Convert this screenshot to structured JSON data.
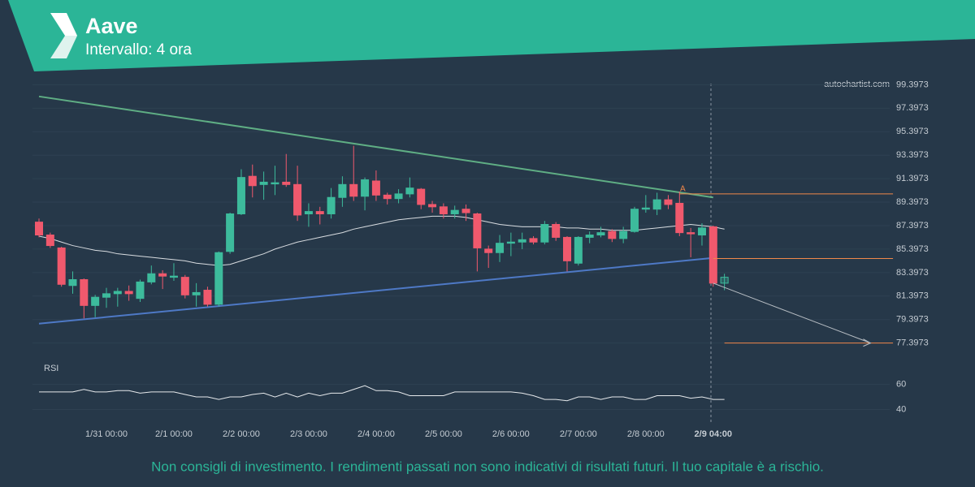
{
  "header": {
    "title": "Aave",
    "subtitle": "Intervallo: 4 ora"
  },
  "watermark": "autochartist.com",
  "disclaimer": "Non consigli di investimento. I rendimenti passati non sono indicativi di risultati futuri. Il tuo capitale è a rischio.",
  "chart_data": {
    "type": "candlestick",
    "categories": [
      null,
      null,
      null,
      null,
      null,
      null,
      "1/31 00:00",
      null,
      null,
      null,
      null,
      null,
      "2/1 00:00",
      null,
      null,
      null,
      null,
      null,
      "2/2 00:00",
      null,
      null,
      null,
      null,
      null,
      "2/3 00:00",
      null,
      null,
      null,
      null,
      null,
      "2/4 00:00",
      null,
      null,
      null,
      null,
      null,
      "2/5 00:00",
      null,
      null,
      null,
      null,
      null,
      "2/6 00:00",
      null,
      null,
      null,
      null,
      null,
      "2/7 00:00",
      null,
      null,
      null,
      null,
      null,
      "2/8 00:00",
      null,
      null,
      null,
      null,
      null,
      "2/9 04:00",
      null
    ],
    "open": [
      87.7,
      86.6,
      85.5,
      82.3,
      82.8,
      80.6,
      81.3,
      81.6,
      81.8,
      81.2,
      82.6,
      83.3,
      83.0,
      83.0,
      81.5,
      81.9,
      80.7,
      85.2,
      88.4,
      91.6,
      90.9,
      90.95,
      91.1,
      90.9,
      88.4,
      88.6,
      88.4,
      89.8,
      90.9,
      89.9,
      91.2,
      90.0,
      89.7,
      90.1,
      90.5,
      89.2,
      89.0,
      88.4,
      88.8,
      88.4,
      85.4,
      85.1,
      85.9,
      86.0,
      86.3,
      86.0,
      87.5,
      86.4,
      84.2,
      86.4,
      86.6,
      86.9,
      86.3,
      86.9,
      88.8,
      88.8,
      89.6,
      89.3,
      86.8,
      86.6,
      87.3,
      82.5
    ],
    "high": [
      88.0,
      86.8,
      85.6,
      83.5,
      82.9,
      81.5,
      82.1,
      82.1,
      82.3,
      82.8,
      84.0,
      83.6,
      84.2,
      83.2,
      82.5,
      82.2,
      85.2,
      88.5,
      92.2,
      92.6,
      92.0,
      92.5,
      93.5,
      92.5,
      89.3,
      89.0,
      90.6,
      91.6,
      94.2,
      91.5,
      92.1,
      90.2,
      90.5,
      91.5,
      90.6,
      89.5,
      89.3,
      89.1,
      89.2,
      88.5,
      85.7,
      86.6,
      86.8,
      86.8,
      86.5,
      87.8,
      87.7,
      86.5,
      86.5,
      86.9,
      87.3,
      87.1,
      87.3,
      89.0,
      90.0,
      90.2,
      90.0,
      90.3,
      87.2,
      87.6,
      87.4,
      83.3
    ],
    "low": [
      86.4,
      85.5,
      82.2,
      81.6,
      79.5,
      79.6,
      80.4,
      80.5,
      81.0,
      80.9,
      82.4,
      82.0,
      82.7,
      81.2,
      80.5,
      80.5,
      80.5,
      85.0,
      88.3,
      89.8,
      89.6,
      90.0,
      90.7,
      87.8,
      87.3,
      87.5,
      88.0,
      89.0,
      89.5,
      88.7,
      89.5,
      89.2,
      89.3,
      89.8,
      88.8,
      88.5,
      88.0,
      88.0,
      87.8,
      83.5,
      83.8,
      84.3,
      84.8,
      85.4,
      85.8,
      85.8,
      86.1,
      83.5,
      84.0,
      85.9,
      86.4,
      86.0,
      85.9,
      86.8,
      88.5,
      88.3,
      88.8,
      86.5,
      84.7,
      85.7,
      82.2,
      81.9
    ],
    "close": [
      86.6,
      85.7,
      82.4,
      82.8,
      80.6,
      81.3,
      81.6,
      81.8,
      81.6,
      82.6,
      83.3,
      83.1,
      83.1,
      81.5,
      81.7,
      80.7,
      85.1,
      88.4,
      91.5,
      90.8,
      91.1,
      91.05,
      90.9,
      88.3,
      88.6,
      88.4,
      89.8,
      90.9,
      89.9,
      91.3,
      90.0,
      89.7,
      90.1,
      90.6,
      89.2,
      89.0,
      88.4,
      88.7,
      88.5,
      85.5,
      85.1,
      85.9,
      86.0,
      86.2,
      86.0,
      87.5,
      86.4,
      84.4,
      86.4,
      86.6,
      86.8,
      86.3,
      86.9,
      88.8,
      88.9,
      89.6,
      89.2,
      86.8,
      86.7,
      87.2,
      82.5,
      83.0
    ],
    "moving_average": [
      86.5,
      86.3,
      86.0,
      85.7,
      85.5,
      85.3,
      85.2,
      85.0,
      84.9,
      84.8,
      84.7,
      84.6,
      84.5,
      84.4,
      84.2,
      84.1,
      84.0,
      84.1,
      84.4,
      84.7,
      85.0,
      85.4,
      85.7,
      86.0,
      86.2,
      86.4,
      86.6,
      86.8,
      87.1,
      87.3,
      87.5,
      87.7,
      87.9,
      88.0,
      88.1,
      88.2,
      88.2,
      88.2,
      88.1,
      87.9,
      87.7,
      87.5,
      87.4,
      87.3,
      87.3,
      87.3,
      87.3,
      87.2,
      87.2,
      87.1,
      87.1,
      87.0,
      87.0,
      87.0,
      87.1,
      87.2,
      87.3,
      87.4,
      87.5,
      87.4,
      87.3,
      87.1
    ],
    "up_color": "#3dbb9c",
    "down_color": "#f0596d",
    "ylim": [
      76.2,
      99.7
    ],
    "yticks": [
      77.3973,
      79.3973,
      81.3973,
      83.3973,
      85.3973,
      87.3973,
      89.3973,
      91.3973,
      93.3973,
      95.3973,
      97.3973,
      99.3973
    ],
    "trendlines": [
      {
        "color": "#5fae84",
        "start": [
          0,
          98.4
        ],
        "end": [
          60,
          89.8
        ]
      },
      {
        "color": "#4e79c6",
        "start": [
          0,
          79.05
        ],
        "end": [
          60,
          84.65
        ]
      }
    ],
    "forecast": {
      "color": "#b8bec4",
      "start": [
        60,
        82.5
      ],
      "end": [
        74,
        77.4
      ]
    },
    "levels": [
      {
        "value": 90.1,
        "start": 57,
        "end": 76,
        "label": "A"
      },
      {
        "value": 84.6,
        "start": 60,
        "end": 76
      },
      {
        "value": 77.4,
        "start": 61,
        "end": 76
      }
    ],
    "level_color": "#f0874a",
    "rsi": {
      "label": "RSI",
      "values": [
        54,
        54,
        54,
        54,
        56,
        54,
        54,
        55,
        55,
        53,
        54,
        54,
        54,
        52,
        50,
        50,
        48,
        50,
        50,
        52,
        53,
        50,
        53,
        50,
        53,
        51,
        53,
        53,
        56,
        59,
        55,
        55,
        54,
        51,
        51,
        51,
        51,
        54,
        54,
        54,
        54,
        54,
        54,
        53,
        51,
        48,
        48,
        47,
        50,
        50,
        48,
        50,
        50,
        48,
        48,
        51,
        51,
        51,
        49,
        50,
        48,
        48
      ],
      "ylim": [
        30,
        72
      ],
      "yticks": [
        40,
        60
      ]
    }
  }
}
